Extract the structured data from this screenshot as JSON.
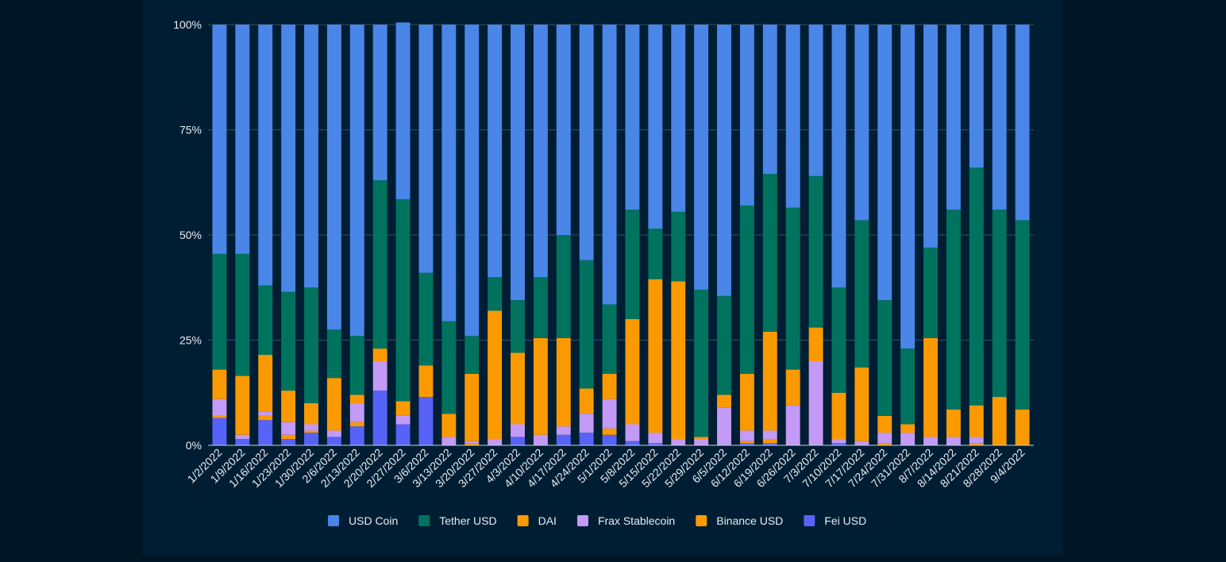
{
  "chart_data": {
    "type": "bar",
    "stacked": true,
    "normalized": true,
    "ylim": [
      0,
      100
    ],
    "yticks": [
      "0%",
      "25%",
      "50%",
      "75%",
      "100%"
    ],
    "legend_position": "bottom",
    "grid": true,
    "categories": [
      "1/2/2022",
      "1/9/2022",
      "1/16/2022",
      "1/23/2022",
      "1/30/2022",
      "2/6/2022",
      "2/13/2022",
      "2/20/2022",
      "2/27/2022",
      "3/6/2022",
      "3/13/2022",
      "3/20/2022",
      "3/27/2022",
      "4/3/2022",
      "4/10/2022",
      "4/17/2022",
      "4/24/2022",
      "5/1/2022",
      "5/8/2022",
      "5/15/2022",
      "5/22/2022",
      "5/29/2022",
      "6/5/2022",
      "6/12/2022",
      "6/19/2022",
      "6/26/2022",
      "7/3/2022",
      "7/10/2022",
      "7/17/2022",
      "7/24/2022",
      "7/31/2022",
      "8/7/2022",
      "8/14/2022",
      "8/21/2022",
      "8/28/2022",
      "9/4/2022"
    ],
    "series": [
      {
        "name": "Fei USD",
        "color": "#5762f7",
        "values": [
          6.5,
          1.5,
          6,
          1.5,
          3,
          2,
          4.5,
          13,
          5,
          11.5,
          0,
          0,
          0,
          2,
          0,
          2.5,
          3,
          2.5,
          1,
          0.5,
          0,
          0,
          0,
          0.5,
          0.5,
          0,
          0,
          0.5,
          0,
          0,
          0,
          0,
          0,
          0,
          0,
          0
        ]
      },
      {
        "name": "Binance USD",
        "color": "#fa9a00",
        "values": [
          0.5,
          0,
          1,
          1,
          0.5,
          0,
          1,
          0,
          0,
          0,
          0,
          0.5,
          0,
          0,
          0,
          0,
          0,
          1.5,
          0,
          0,
          0,
          0,
          0,
          0.5,
          1,
          0,
          0,
          0,
          0,
          0.5,
          0,
          0,
          0,
          0.5,
          0,
          0
        ]
      },
      {
        "name": "Frax Stablecoin",
        "color": "#c39af6",
        "values": [
          4,
          1,
          1,
          3,
          1.5,
          1.5,
          4.5,
          7,
          2,
          0,
          2,
          0.5,
          1.5,
          3,
          2.5,
          2,
          4.5,
          7,
          4,
          2.5,
          1.5,
          1.5,
          9,
          2.5,
          2,
          9.5,
          20,
          1,
          1,
          2.5,
          3,
          2,
          2,
          1.5,
          0,
          0
        ]
      },
      {
        "name": "DAI",
        "color": "#fa9a00",
        "values": [
          7,
          14,
          13.5,
          7.5,
          5,
          12.5,
          2,
          3,
          3.5,
          7.5,
          5.5,
          16,
          30.5,
          17,
          23,
          21,
          6,
          6,
          25,
          36.5,
          37.5,
          0.5,
          3,
          13.5,
          23.5,
          8.5,
          8,
          11,
          17.5,
          4,
          2,
          23.5,
          6.5,
          7.5,
          11.5,
          8.5
        ]
      },
      {
        "name": "Tether USD",
        "color": "#00735f",
        "values": [
          27.5,
          29,
          16.5,
          23.5,
          27.5,
          11.5,
          14,
          40,
          48,
          22,
          22,
          9,
          8,
          12.5,
          14.5,
          24.5,
          30.5,
          16.5,
          26,
          12,
          16.5,
          35,
          23.5,
          40,
          37.5,
          38.5,
          36,
          25,
          35,
          27.5,
          18,
          21.5,
          47.5,
          56.5,
          44.5,
          45
        ]
      },
      {
        "name": "USD Coin",
        "color": "#4a86e8",
        "values": [
          54.5,
          54.5,
          62,
          63.5,
          62.5,
          72.5,
          74,
          37,
          42,
          59,
          70.5,
          74,
          60,
          65.5,
          60,
          50,
          56,
          66.5,
          44,
          48.5,
          44.5,
          63,
          64.5,
          43,
          35.5,
          43.5,
          36,
          62.5,
          46.5,
          65.5,
          77,
          53,
          44,
          34,
          44,
          46.5
        ]
      }
    ],
    "legend_order": [
      "USD Coin",
      "Tether USD",
      "DAI",
      "Frax Stablecoin",
      "Binance USD",
      "Fei USD"
    ]
  }
}
